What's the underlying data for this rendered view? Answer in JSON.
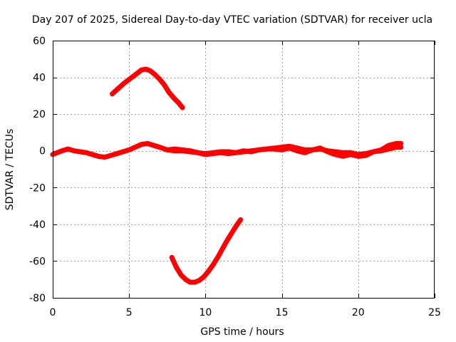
{
  "chart_data": {
    "type": "line",
    "title": "Day 207 of 2025, Sidereal Day-to-day VTEC variation (SDTVAR) for receiver ucla",
    "xlabel": "GPS time / hours",
    "ylabel": "SDTVAR / TECUs",
    "xlim": [
      0,
      25
    ],
    "ylim": [
      -80,
      60
    ],
    "grid": true,
    "x_ticks": [
      0,
      5,
      10,
      15,
      20,
      25
    ],
    "y_ticks": [
      -80,
      -60,
      -40,
      -20,
      0,
      20,
      40,
      60
    ],
    "x_tick_labels": [
      "0",
      "5",
      "10",
      "15",
      "20",
      "25"
    ],
    "y_tick_labels": [
      "-80",
      "-60",
      "-40",
      "-20",
      "0",
      "20",
      "40",
      "60"
    ],
    "series_color": "#ff0000",
    "series": [
      {
        "name": "baseline-track",
        "x": [
          0.0,
          0.3,
          0.6,
          1.0,
          1.4,
          1.8,
          2.2,
          2.6,
          3.0,
          3.4,
          3.8,
          4.2,
          4.6,
          5.0,
          5.4,
          5.8,
          6.2,
          6.6,
          7.0,
          7.5,
          8.0,
          8.5,
          9.0,
          9.5,
          10.0,
          10.5,
          11.0,
          11.5,
          12.0,
          12.5,
          13.0,
          13.5,
          14.0,
          14.5,
          15.0,
          15.5,
          16.0,
          16.5,
          17.0,
          17.5,
          18.0,
          18.5,
          19.0,
          19.5,
          20.0,
          20.5,
          21.0,
          21.5,
          22.0,
          22.5,
          22.8
        ],
        "y": [
          -2,
          -1,
          0,
          1,
          0,
          -0.5,
          -1,
          -2,
          -3,
          -3.5,
          -2.5,
          -1.5,
          -0.5,
          0.5,
          2,
          3.5,
          4,
          3,
          2,
          0.5,
          0,
          0,
          -0.5,
          -1,
          -1.5,
          -1,
          -0.5,
          -0.5,
          -1,
          -0.5,
          0,
          0.5,
          1,
          1.5,
          2,
          2.5,
          1.5,
          0.5,
          0.5,
          1,
          0,
          -0.5,
          -1,
          -1,
          -2,
          -1.5,
          -0.5,
          0,
          1,
          2,
          2
        ]
      },
      {
        "name": "baseline-track-2",
        "x": [
          7.5,
          8.0,
          8.5,
          9.0,
          9.5,
          10.0,
          10.5,
          11.0,
          11.5,
          12.0,
          12.5,
          13.0,
          13.5,
          14.0,
          14.5,
          15.0,
          15.5,
          16.0,
          16.5,
          17.0,
          17.5,
          18.0,
          18.5,
          19.0,
          19.5,
          20.0,
          20.5,
          21.0,
          21.5,
          22.0,
          22.5,
          22.8
        ],
        "y": [
          0.5,
          1,
          0.5,
          0,
          -1,
          -2,
          -1.5,
          -1,
          -1.5,
          -1,
          0,
          -0.5,
          0.5,
          1,
          1,
          0.5,
          1.5,
          0,
          -1,
          0.5,
          1.5,
          -0.5,
          -2,
          -3,
          -2,
          -3,
          -2.5,
          -0.5,
          0.5,
          3,
          4,
          4
        ]
      },
      {
        "name": "arc-high",
        "x": [
          3.9,
          4.3,
          4.7,
          5.1,
          5.5,
          5.8,
          6.1,
          6.4,
          6.7,
          7.0,
          7.3,
          7.6,
          7.9,
          8.2,
          8.5
        ],
        "y": [
          31,
          34,
          37,
          39.5,
          42,
          44,
          44.5,
          43.5,
          41.5,
          39,
          36,
          32,
          29,
          26.5,
          23.5
        ]
      },
      {
        "name": "arc-low",
        "x": [
          7.8,
          8.1,
          8.4,
          8.7,
          9.0,
          9.3,
          9.6,
          9.9,
          10.2,
          10.5,
          10.8,
          11.1,
          11.4,
          11.7,
          12.0,
          12.3
        ],
        "y": [
          -58,
          -63.5,
          -67.5,
          -70,
          -71.5,
          -71.5,
          -70.5,
          -68.5,
          -65.5,
          -62,
          -58,
          -53.5,
          -49,
          -45,
          -41,
          -37.5
        ]
      }
    ]
  }
}
